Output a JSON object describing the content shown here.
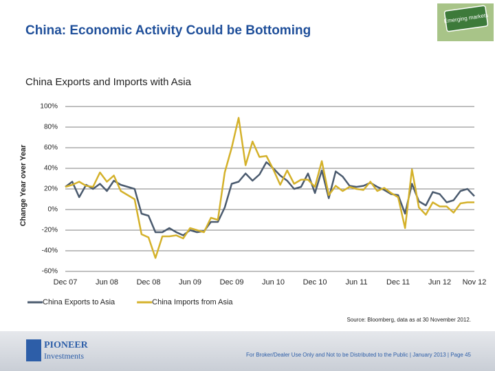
{
  "header": {
    "title": "China: Economic Activity Could be Bottoming",
    "badge": "Emerging markets"
  },
  "chart_data": {
    "type": "line",
    "title": "China Exports and Imports with Asia",
    "y_label": "Change Year over Year",
    "categories": [
      "Dec 07",
      null,
      null,
      null,
      null,
      null,
      "Jun 08",
      null,
      null,
      null,
      null,
      null,
      "Dec 08",
      null,
      null,
      null,
      null,
      null,
      "Jun 09",
      null,
      null,
      null,
      null,
      null,
      "Dec 09",
      null,
      null,
      null,
      null,
      null,
      "Jun 10",
      null,
      null,
      null,
      null,
      null,
      "Dec 10",
      null,
      null,
      null,
      null,
      null,
      "Jun 11",
      null,
      null,
      null,
      null,
      null,
      "Dec 11",
      null,
      null,
      null,
      null,
      null,
      "Jun 12",
      null,
      null,
      null,
      null,
      "Nov 12"
    ],
    "series": [
      {
        "name": "China Exports to Asia",
        "color": "#4a5a6e",
        "values": [
          22,
          27,
          12,
          24,
          20,
          25,
          18,
          28,
          24,
          22,
          20,
          -4,
          -6,
          -22,
          -22,
          -18,
          -22,
          -25,
          -20,
          -22,
          -21,
          -12,
          -12,
          2,
          25,
          27,
          35,
          28,
          34,
          46,
          40,
          33,
          28,
          20,
          22,
          35,
          16,
          38,
          11,
          37,
          32,
          23,
          22,
          23,
          26,
          22,
          19,
          15,
          14,
          -4,
          25,
          8,
          4,
          17,
          15,
          7,
          9,
          18,
          20,
          13
        ]
      },
      {
        "name": "China Imports from Asia",
        "color": "#d4b12a",
        "values": [
          22,
          24,
          27,
          23,
          22,
          36,
          27,
          33,
          18,
          14,
          10,
          -24,
          -27,
          -47,
          -26,
          -26,
          -25,
          -28,
          -18,
          -20,
          -22,
          -8,
          -10,
          36,
          60,
          89,
          43,
          66,
          51,
          52,
          39,
          24,
          38,
          25,
          29,
          29,
          22,
          47,
          14,
          23,
          18,
          22,
          20,
          19,
          27,
          18,
          21,
          16,
          12,
          -18,
          39,
          2,
          -5,
          7,
          3,
          3,
          -3,
          6,
          7,
          7
        ]
      }
    ],
    "ylim": [
      -60,
      100
    ],
    "yticks": [
      {
        "value": -60,
        "label": "-60%"
      },
      {
        "value": -40,
        "label": "-40%"
      },
      {
        "value": -20,
        "label": "-20%"
      },
      {
        "value": 0,
        "label": "0%"
      },
      {
        "value": 20,
        "label": "20%"
      },
      {
        "value": 40,
        "label": "40%"
      },
      {
        "value": 60,
        "label": "60%"
      },
      {
        "value": 80,
        "label": "80%"
      },
      {
        "value": 100,
        "label": "100%"
      }
    ],
    "grid": true,
    "legend": "bottom-left",
    "source": "Source: Bloomberg, data as at 30 November 2012."
  },
  "footer": {
    "logo_top": "PIONEER",
    "logo_bottom": "Investments",
    "text": "For Broker/Dealer Use Only and Not to be Distributed to the Public | January 2013 | Page 45"
  }
}
